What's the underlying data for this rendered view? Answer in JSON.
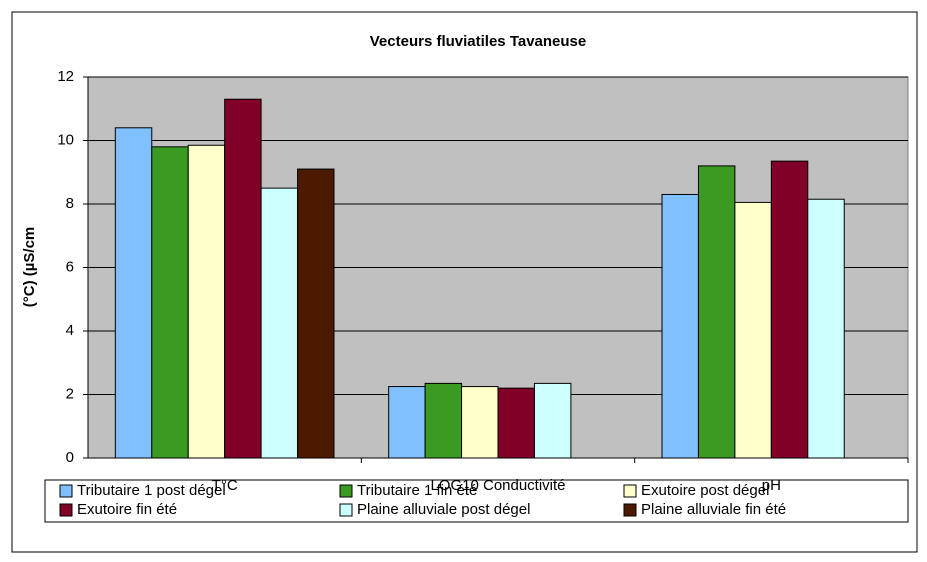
{
  "chart_data": {
    "type": "bar",
    "title": "Vecteurs fluviatiles Tavaneuse",
    "y_label": "(°C) (µS/cm",
    "categories": [
      "T°C",
      "LOG10 Conductivité",
      "pH"
    ],
    "series": [
      {
        "name": "Tributaire 1 post dégel",
        "color": "#80c0ff",
        "values": [
          10.4,
          2.25,
          8.3
        ]
      },
      {
        "name": "Tributaire 1 fin été",
        "color": "#3a9a22",
        "values": [
          9.8,
          2.35,
          9.2
        ]
      },
      {
        "name": "Exutoire post dégel",
        "color": "#ffffcc",
        "values": [
          9.85,
          2.25,
          8.05
        ]
      },
      {
        "name": "Exutoire fin été",
        "color": "#800028",
        "values": [
          11.3,
          2.2,
          9.35
        ]
      },
      {
        "name": "Plaine alluviale post dégel",
        "color": "#ccffff",
        "values": [
          8.5,
          2.35,
          8.15
        ]
      },
      {
        "name": "Plaine alluviale fin été",
        "color": "#4c1a00",
        "values": [
          9.1,
          null,
          null
        ]
      }
    ],
    "ylim": [
      0,
      12
    ],
    "yticks": [
      0,
      2,
      4,
      6,
      8,
      10,
      12
    ],
    "grid": true,
    "legend": "bottom"
  }
}
